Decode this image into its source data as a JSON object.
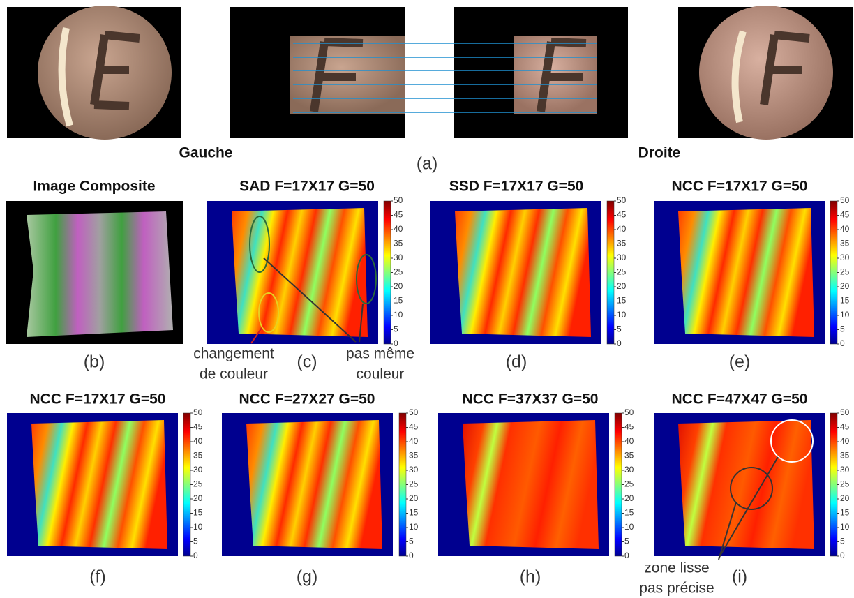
{
  "figure": {
    "top": {
      "left_label": "Gauche",
      "right_label": "Droite",
      "caption": "(a)"
    },
    "panels": [
      {
        "title": "Image Composite",
        "caption": "(b)"
      },
      {
        "title": "SAD  F=17X17 G=50",
        "caption": "(c)"
      },
      {
        "title": "SSD  F=17X17 G=50",
        "caption": "(d)"
      },
      {
        "title": "NCC  F=17X17 G=50",
        "caption": "(e)"
      },
      {
        "title": "NCC  F=17X17 G=50",
        "caption": "(f)"
      },
      {
        "title": "NCC  F=27X27 G=50",
        "caption": "(g)"
      },
      {
        "title": "NCC  F=37X37 G=50",
        "caption": "(h)"
      },
      {
        "title": "NCC  F=47X47 G=50",
        "caption": "(i)"
      }
    ],
    "colorbar_ticks": [
      0,
      5,
      10,
      15,
      20,
      25,
      30,
      35,
      40,
      45,
      50
    ],
    "annotations": [
      {
        "lines": [
          "changement",
          "de couleur"
        ]
      },
      {
        "lines": [
          "pas même",
          "couleur"
        ]
      },
      {
        "lines": [
          "zone lisse",
          "pas précise"
        ]
      }
    ]
  }
}
